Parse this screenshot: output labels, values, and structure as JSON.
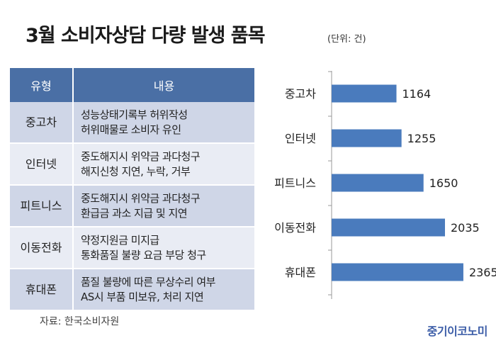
{
  "title": "3월 소비자상담 다량 발생 품목",
  "unit_note": "(단위: 건)",
  "table": {
    "headers": [
      "유형",
      "내용"
    ],
    "rows": [
      {
        "type": "중고차",
        "lines": [
          "성능상태기록부 허위작성",
          "허위매물로 소비자 유인"
        ]
      },
      {
        "type": "인터넷",
        "lines": [
          "중도해지시 위약금 과다청구",
          "해지신청 지연, 누락, 거부"
        ]
      },
      {
        "type": "피트니스",
        "lines": [
          "중도해지시 위약금 과다청구",
          "환급금 과소 지급 및 지연"
        ]
      },
      {
        "type": "이동전화",
        "lines": [
          "약정지원금 미지급",
          "통화품질 불량 요금 부당 청구"
        ]
      },
      {
        "type": "휴대폰",
        "lines": [
          "품질 불량에 따른 무상수리 여부",
          "AS시 부품 미보유, 처리 지연"
        ]
      }
    ]
  },
  "source": "자료: 한국소비자원",
  "logo": "중기이코노미",
  "chart_data": {
    "type": "bar",
    "orientation": "horizontal",
    "categories": [
      "중고차",
      "인터넷",
      "피트니스",
      "이동전화",
      "휴대폰"
    ],
    "values": [
      1164,
      1255,
      1650,
      2035,
      2365
    ],
    "xlim": [
      0,
      2900
    ],
    "bar_color": "#4a7bbd",
    "grid": false,
    "legend": "none"
  },
  "colors": {
    "header_bg": "#4a6fa5",
    "row_odd": "#cfd6e7",
    "row_even": "#e9ecf4",
    "logo": "#3d5ea8"
  }
}
